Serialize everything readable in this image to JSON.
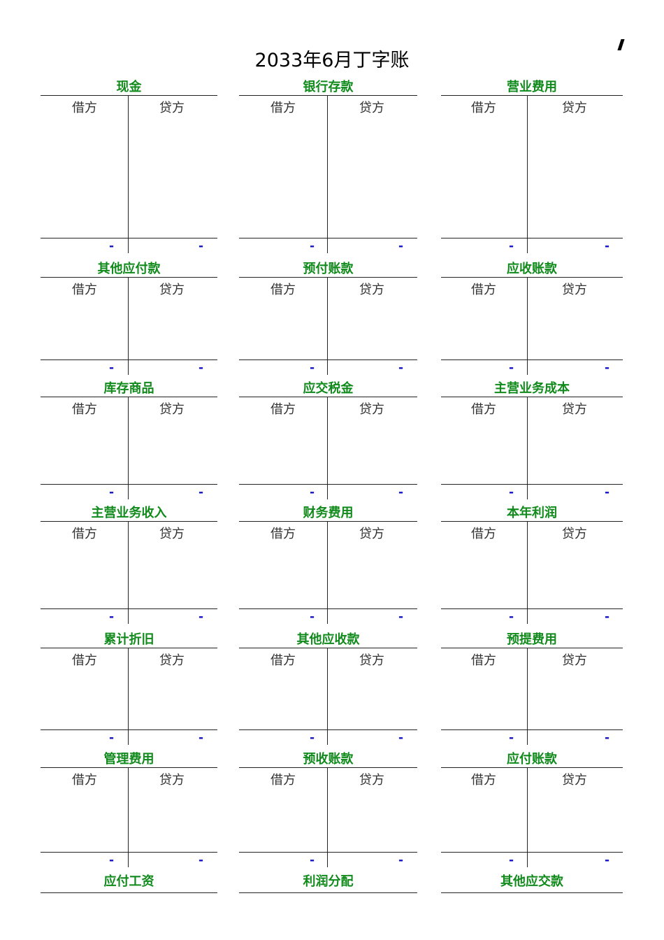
{
  "title": "2033年6月丁字账",
  "labels": {
    "debit": "借方",
    "credit": "贷方",
    "balance_placeholder": "-"
  },
  "colors": {
    "account_name": "#118a1c",
    "balance": "#1414c8",
    "rule": "#222222"
  },
  "rows": [
    [
      "现金",
      "银行存款",
      "营业费用"
    ],
    [
      "其他应付款",
      "预付账款",
      "应收账款"
    ],
    [
      "库存商品",
      "应交税金",
      "主营业务成本"
    ],
    [
      "主营业务收入",
      "财务费用",
      "本年利润"
    ],
    [
      "累计折旧",
      "其他应收款",
      "预提费用"
    ],
    [
      "管理费用",
      "预收账款",
      "应付账款"
    ]
  ],
  "footer_accounts": [
    "应付工资",
    "利润分配",
    "其他应交款"
  ]
}
